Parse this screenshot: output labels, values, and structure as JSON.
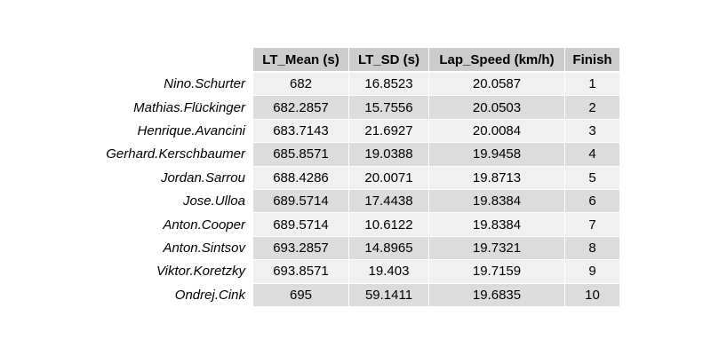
{
  "chart_data": {
    "type": "table",
    "columns": [
      "LT_Mean (s)",
      "LT_SD (s)",
      "Lap_Speed (km/h)",
      "Finish"
    ],
    "rows": [
      {
        "name": "Nino.Schurter",
        "values": [
          "682",
          "16.8523",
          "20.0587",
          "1"
        ]
      },
      {
        "name": "Mathias.Flückinger",
        "values": [
          "682.2857",
          "15.7556",
          "20.0503",
          "2"
        ]
      },
      {
        "name": "Henrique.Avancini",
        "values": [
          "683.7143",
          "21.6927",
          "20.0084",
          "3"
        ]
      },
      {
        "name": "Gerhard.Kerschbaumer",
        "values": [
          "685.8571",
          "19.0388",
          "19.9458",
          "4"
        ]
      },
      {
        "name": "Jordan.Sarrou",
        "values": [
          "688.4286",
          "20.0071",
          "19.8713",
          "5"
        ]
      },
      {
        "name": "Jose.Ulloa",
        "values": [
          "689.5714",
          "17.4438",
          "19.8384",
          "6"
        ]
      },
      {
        "name": "Anton.Cooper",
        "values": [
          "689.5714",
          "10.6122",
          "19.8384",
          "7"
        ]
      },
      {
        "name": "Anton.Sintsov",
        "values": [
          "693.2857",
          "14.8965",
          "19.7321",
          "8"
        ]
      },
      {
        "name": "Viktor.Koretzky",
        "values": [
          "693.8571",
          "19.403",
          "19.7159",
          "9"
        ]
      },
      {
        "name": "Ondrej.Cink",
        "values": [
          "695",
          "59.1411",
          "19.6835",
          "10"
        ]
      }
    ],
    "header_color": "#cccccc",
    "row_colors": [
      "#f0f0f0",
      "#dcdcdc"
    ]
  }
}
